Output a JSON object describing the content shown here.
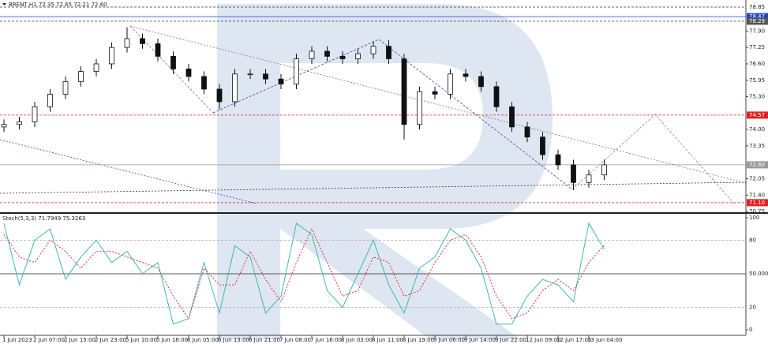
{
  "chart_data": {
    "type": "candlestick",
    "title": "BRENT,H1 72.35 72.65 72.21 72.60",
    "categories": [
      "1 Jun 2023",
      null,
      "2 Jun 07:00",
      null,
      "2 Jun 15:00",
      null,
      "2 Jun 23:00",
      null,
      "5 Jun 10:00",
      null,
      "5 Jun 18:00",
      null,
      "6 Jun 05:00",
      null,
      "6 Jun 13:00",
      null,
      "6 Jun 21:00",
      null,
      "7 Jun 08:00",
      null,
      "7 Jun 16:00",
      null,
      "8 Jun 03:00",
      null,
      "8 Jun 11:00",
      null,
      "8 Jun 19:00",
      null,
      "9 Jun 06:00",
      null,
      "9 Jun 14:00",
      null,
      "9 Jun 22:00",
      null,
      "12 Jun 09:00",
      null,
      "12 Jun 17:00",
      null,
      "13 Jun 04:00",
      null
    ],
    "open": [
      74.1,
      74.2,
      74.3,
      74.9,
      75.4,
      75.9,
      76.3,
      76.6,
      77.25,
      77.6,
      77.4,
      76.9,
      76.4,
      76.1,
      75.6,
      75.1,
      76.2,
      76.2,
      76.0,
      75.8,
      76.8,
      77.1,
      76.9,
      76.8,
      77.0,
      77.3,
      76.8,
      74.2,
      75.5,
      75.4,
      76.2,
      76.1,
      75.7,
      74.9,
      74.1,
      73.7,
      73.0,
      72.6,
      71.9,
      72.2
    ],
    "high": [
      74.4,
      74.5,
      75.1,
      75.6,
      76.1,
      76.5,
      76.8,
      77.45,
      78.05,
      77.8,
      77.6,
      77.1,
      76.6,
      76.3,
      75.8,
      76.4,
      76.4,
      76.4,
      76.2,
      77.0,
      77.3,
      77.3,
      77.1,
      77.2,
      77.5,
      77.55,
      77.0,
      75.7,
      75.7,
      76.4,
      76.4,
      76.3,
      75.9,
      75.1,
      74.3,
      73.9,
      73.2,
      72.8,
      72.4,
      72.8
    ],
    "low": [
      73.9,
      74.0,
      74.1,
      74.7,
      75.2,
      75.7,
      76.1,
      76.4,
      77.05,
      77.2,
      76.7,
      76.2,
      75.9,
      75.4,
      74.8,
      74.9,
      76.0,
      75.8,
      75.6,
      75.6,
      76.6,
      76.7,
      76.6,
      76.6,
      76.8,
      76.6,
      73.6,
      74.0,
      75.2,
      75.2,
      75.9,
      75.5,
      74.7,
      73.9,
      73.5,
      72.8,
      72.4,
      71.6,
      71.7,
      72.0
    ],
    "close": [
      74.2,
      74.3,
      74.9,
      75.4,
      75.9,
      76.3,
      76.6,
      77.25,
      77.6,
      77.4,
      76.9,
      76.4,
      76.1,
      75.6,
      75.1,
      76.2,
      76.2,
      76.0,
      75.8,
      76.8,
      77.1,
      76.9,
      76.8,
      77.0,
      77.3,
      76.8,
      74.2,
      75.5,
      75.4,
      76.2,
      76.1,
      75.7,
      74.9,
      74.1,
      73.7,
      73.0,
      72.6,
      71.9,
      72.2,
      72.6
    ],
    "ylim": [
      70.69,
      78.975
    ],
    "yticks": [
      {
        "value": 77.9,
        "label": "77.90"
      },
      77.25,
      {
        "value": 76.6,
        "label": "76.60"
      },
      75.95,
      {
        "value": 75.3,
        "label": "75.30"
      },
      {
        "value": 74,
        "label": "74.00"
      },
      73.35,
      72.05,
      {
        "value": 71.4,
        "label": "71.40"
      },
      70.75
    ],
    "levels": [
      {
        "value": 78.85,
        "color": "#333333",
        "style": "dashed"
      },
      {
        "value": 78.47,
        "color": "#1f3fd8",
        "style": "solid"
      },
      {
        "value": 78.29,
        "color": "#333333",
        "style": "dashed"
      },
      {
        "value": 74.57,
        "color": "#e02020",
        "style": "dashed"
      },
      {
        "value": 72.6,
        "label": "72.60",
        "color": "#9a9a9a",
        "style": "solid"
      },
      {
        "value": 71.1,
        "label": "71.10",
        "color": "#e02020",
        "style": "dashed"
      }
    ],
    "indicator": {
      "type": "line",
      "title": "Stoch(5,3,3) 71.7949 75.3263",
      "ylim": [
        -5,
        103
      ],
      "yticks": [
        100,
        80,
        {
          "value": 50,
          "label": "50.0000"
        },
        20,
        0
      ],
      "series": [
        {
          "color": "#3fb8b0",
          "style": "solid",
          "values": [
            95,
            40,
            80,
            90,
            45,
            65,
            80,
            60,
            70,
            50,
            60,
            5,
            10,
            60,
            15,
            75,
            65,
            15,
            30,
            95,
            85,
            35,
            20,
            50,
            80,
            40,
            15,
            55,
            65,
            90,
            80,
            55,
            5,
            5,
            30,
            45,
            40,
            25,
            95,
            71.79
          ]
        },
        {
          "color": "#e03030",
          "style": "dashed",
          "values": [
            85,
            65,
            60,
            80,
            70,
            55,
            70,
            70,
            65,
            60,
            55,
            30,
            10,
            55,
            40,
            40,
            70,
            45,
            25,
            60,
            90,
            60,
            30,
            35,
            65,
            60,
            30,
            35,
            60,
            80,
            85,
            65,
            30,
            10,
            15,
            35,
            45,
            35,
            60,
            75.33
          ]
        }
      ]
    }
  }
}
